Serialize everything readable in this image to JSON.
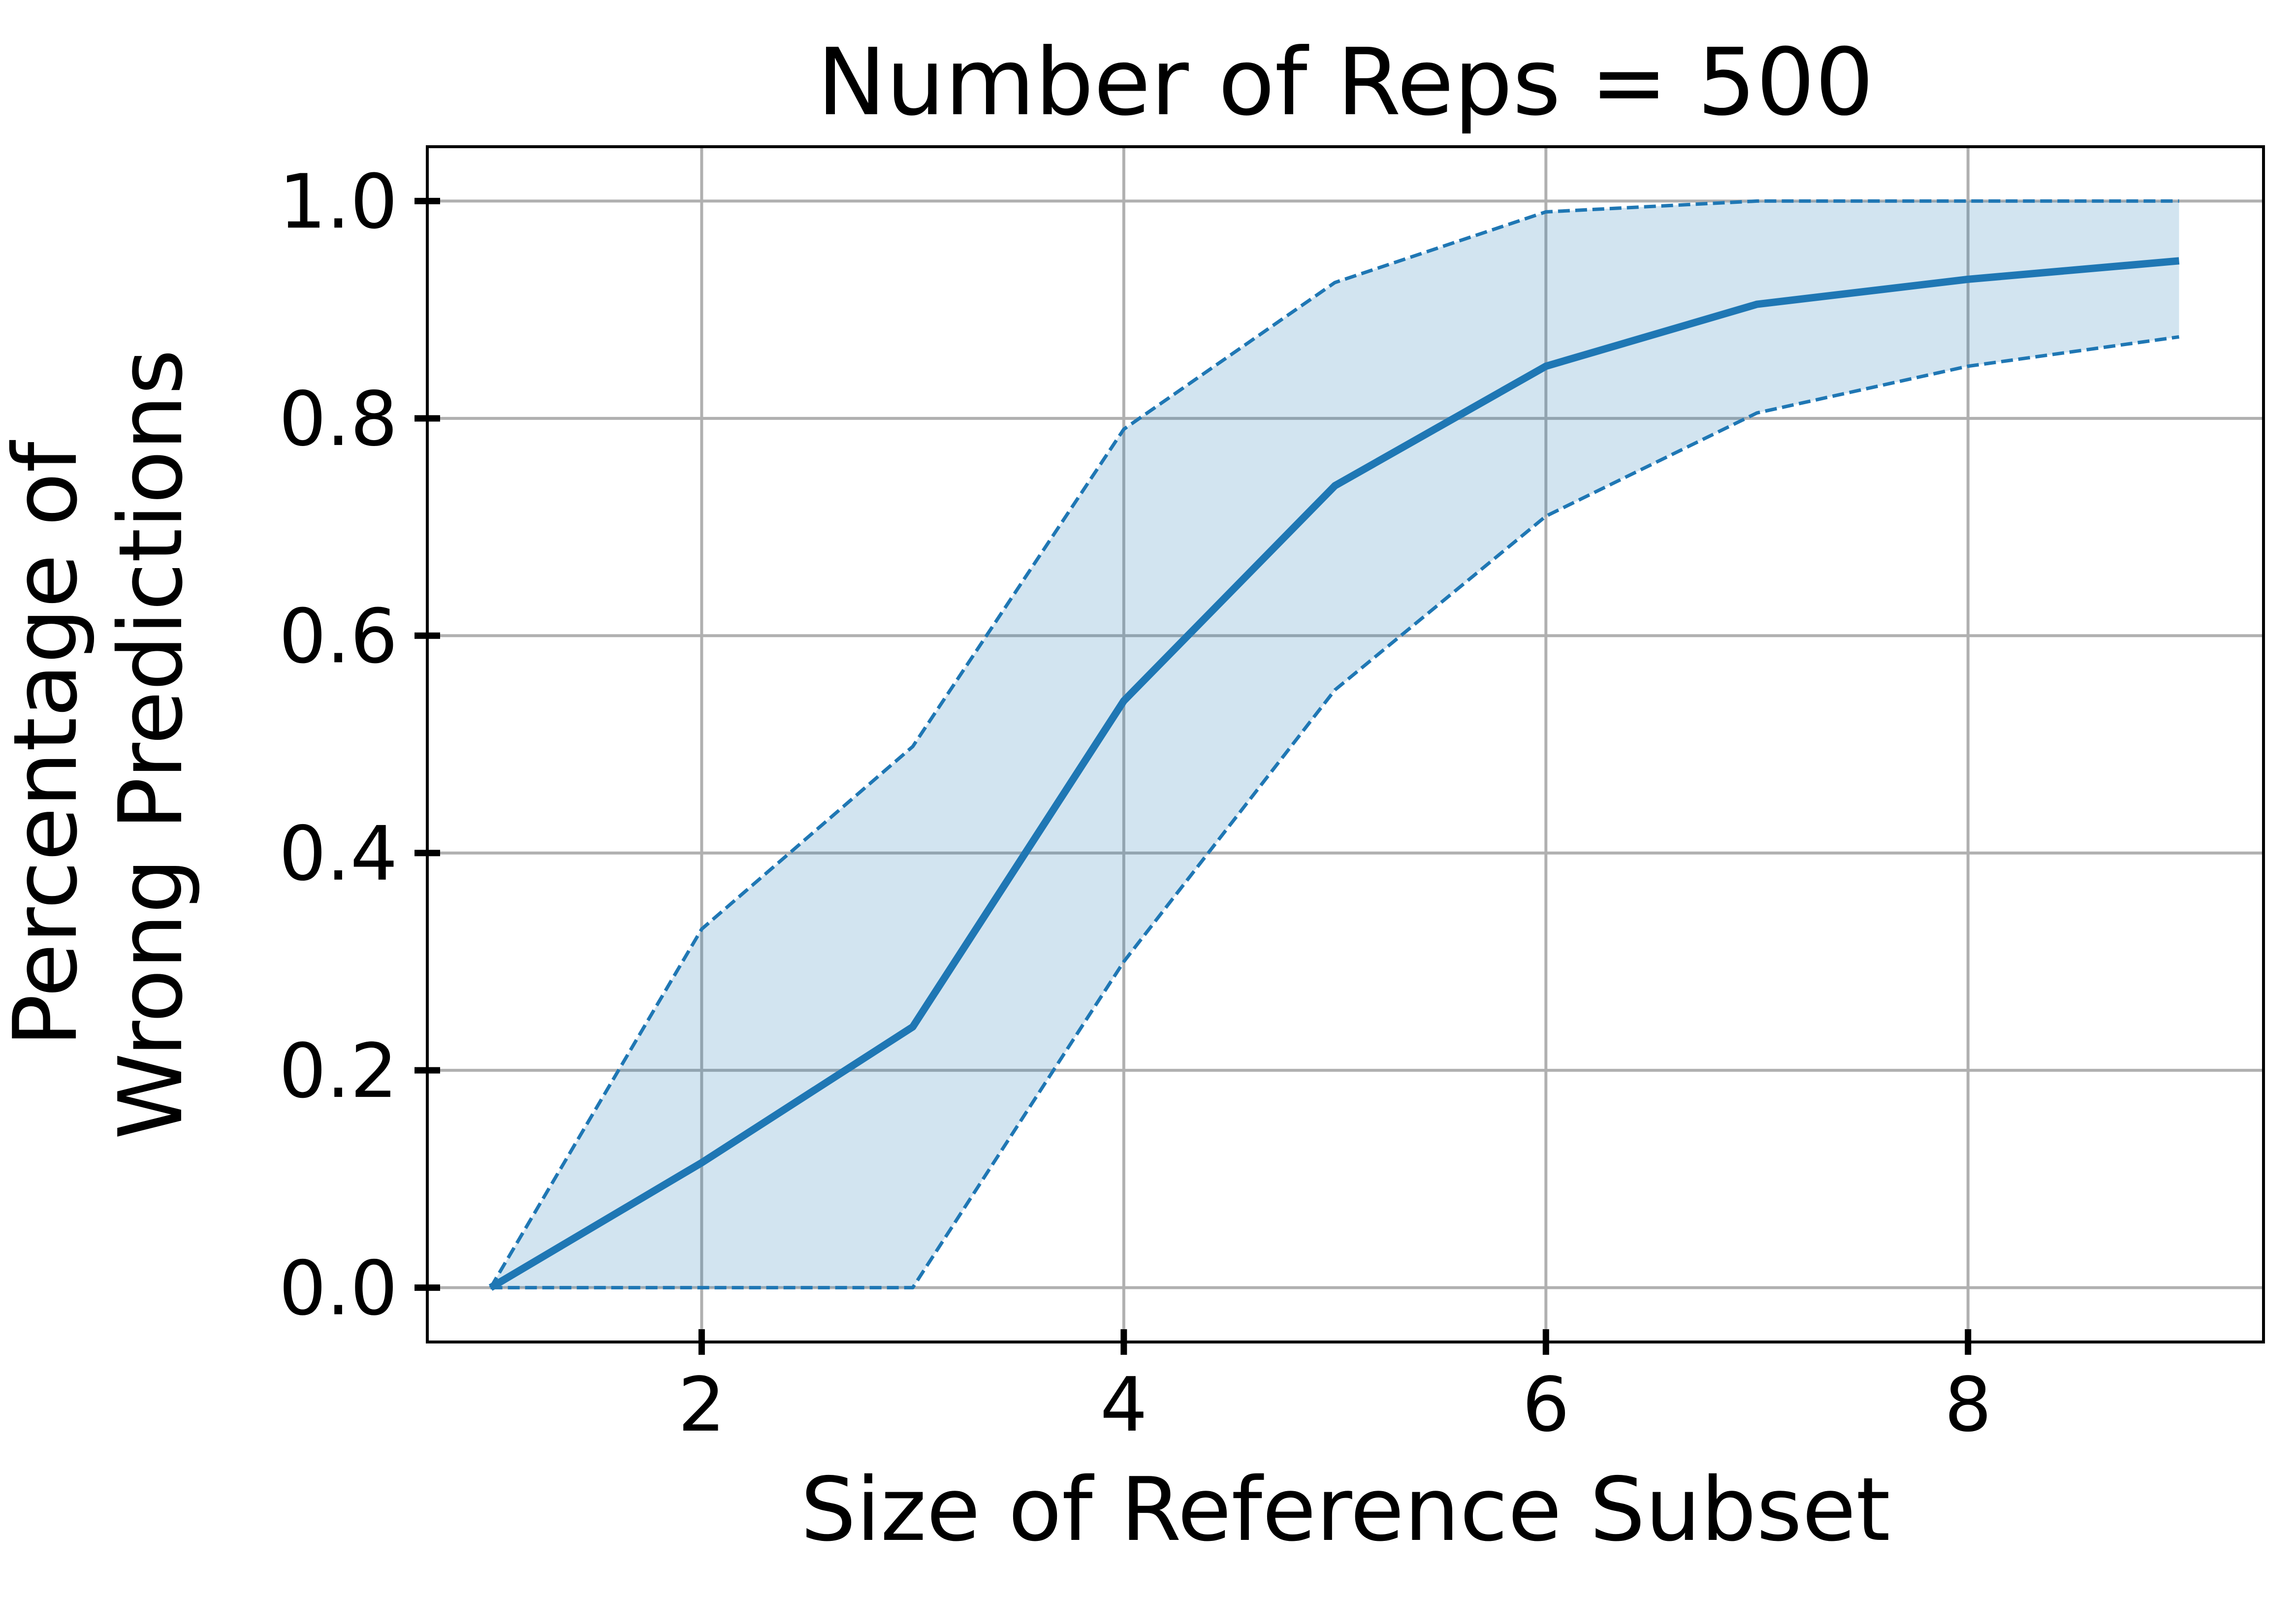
{
  "chart_data": {
    "type": "line",
    "title": "Number of Reps = 500",
    "xlabel": "Size of Reference Subset",
    "ylabel_lines": [
      "Percentage of",
      "Wrong Predictions"
    ],
    "xlim": [
      0.7,
      9.4
    ],
    "ylim": [
      -0.05,
      1.05
    ],
    "xticks": [
      2,
      4,
      6,
      8
    ],
    "xtick_labels": [
      "2",
      "4",
      "6",
      "8"
    ],
    "yticks": [
      0.0,
      0.2,
      0.4,
      0.6,
      0.8,
      1.0
    ],
    "ytick_labels": [
      "0.0",
      "0.2",
      "0.4",
      "0.6",
      "0.8",
      "1.0"
    ],
    "grid": true,
    "series": [
      {
        "role": "mean",
        "style": "solid",
        "color": "#1f77b4",
        "x": [
          1,
          2,
          3,
          4,
          5,
          6,
          7,
          8,
          9
        ],
        "y": [
          0.0,
          0.115,
          0.24,
          0.54,
          0.738,
          0.848,
          0.905,
          0.928,
          0.945
        ]
      },
      {
        "role": "upper",
        "style": "dashed",
        "color": "#1f77b4",
        "x": [
          1,
          2,
          3,
          4,
          5,
          6,
          7,
          8,
          9
        ],
        "y": [
          0.0,
          0.33,
          0.498,
          0.79,
          0.925,
          0.99,
          1.0,
          1.0,
          1.0
        ]
      },
      {
        "role": "lower",
        "style": "dashed",
        "color": "#1f77b4",
        "x": [
          1,
          2,
          3,
          4,
          5,
          6,
          7,
          8,
          9
        ],
        "y": [
          0.0,
          0.0,
          0.0,
          0.3,
          0.55,
          0.71,
          0.805,
          0.848,
          0.875
        ]
      }
    ],
    "band": {
      "between": [
        "lower",
        "upper"
      ],
      "color": "#1f77b4",
      "opacity": 0.2
    }
  }
}
